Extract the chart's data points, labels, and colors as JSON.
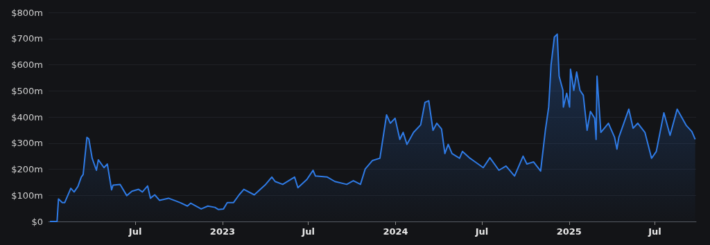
{
  "chart_data": {
    "type": "area",
    "color": "#2f7be6",
    "grid": "y",
    "marker": "none",
    "line_style": "solid",
    "xlim": [
      "2021-12-30",
      "2025-09-26"
    ],
    "xticks": [
      {
        "value": "2022-07-01",
        "label": "Jul"
      },
      {
        "value": "2023-01-01",
        "label": "2023"
      },
      {
        "value": "2023-07-01",
        "label": "Jul"
      },
      {
        "value": "2024-01-01",
        "label": "2024"
      },
      {
        "value": "2024-07-01",
        "label": "Jul"
      },
      {
        "value": "2025-01-01",
        "label": "2025"
      },
      {
        "value": "2025-07-01",
        "label": "Jul"
      }
    ],
    "ylim": [
      0,
      800
    ],
    "yticks": [
      {
        "value": 0,
        "label": "$0"
      },
      {
        "value": 100,
        "label": "$100m"
      },
      {
        "value": 200,
        "label": "$200m"
      },
      {
        "value": 300,
        "label": "$300m"
      },
      {
        "value": 400,
        "label": "$400m"
      },
      {
        "value": 500,
        "label": "$500m"
      },
      {
        "value": 600,
        "label": "$600m"
      },
      {
        "value": 700,
        "label": "$700m"
      },
      {
        "value": 800,
        "label": "$800m"
      }
    ],
    "x": [
      "2022-01-02",
      "2022-01-17",
      "2022-01-20",
      "2022-01-28",
      "2022-02-02",
      "2022-02-15",
      "2022-02-22",
      "2022-03-02",
      "2022-03-09",
      "2022-03-13",
      "2022-03-21",
      "2022-03-25",
      "2022-04-01",
      "2022-04-10",
      "2022-04-14",
      "2022-04-26",
      "2022-05-03",
      "2022-05-12",
      "2022-05-15",
      "2022-05-30",
      "2022-06-13",
      "2022-06-24",
      "2022-07-08",
      "2022-07-16",
      "2022-07-27",
      "2022-08-02",
      "2022-08-11",
      "2022-08-21",
      "2022-09-09",
      "2022-10-04",
      "2022-10-19",
      "2022-10-26",
      "2022-11-17",
      "2022-12-01",
      "2022-12-16",
      "2022-12-23",
      "2023-01-03",
      "2023-01-11",
      "2023-01-24",
      "2023-02-05",
      "2023-02-15",
      "2023-03-09",
      "2023-04-02",
      "2023-04-15",
      "2023-04-22",
      "2023-05-08",
      "2023-06-02",
      "2023-06-09",
      "2023-06-28",
      "2023-07-11",
      "2023-07-16",
      "2023-08-10",
      "2023-08-26",
      "2023-09-20",
      "2023-10-04",
      "2023-10-19",
      "2023-10-29",
      "2023-11-13",
      "2023-11-29",
      "2023-12-13",
      "2023-12-21",
      "2023-12-31",
      "2024-01-10",
      "2024-01-17",
      "2024-01-25",
      "2024-02-08",
      "2024-02-23",
      "2024-03-03",
      "2024-03-11",
      "2024-03-20",
      "2024-03-28",
      "2024-04-07",
      "2024-04-14",
      "2024-04-21",
      "2024-04-29",
      "2024-05-15",
      "2024-05-21",
      "2024-06-06",
      "2024-06-13",
      "2024-07-04",
      "2024-07-18",
      "2024-08-06",
      "2024-08-21",
      "2024-09-08",
      "2024-09-26",
      "2024-10-04",
      "2024-10-18",
      "2024-11-02",
      "2024-11-12",
      "2024-11-19",
      "2024-11-24",
      "2024-12-01",
      "2024-12-07",
      "2024-12-11",
      "2024-12-19",
      "2024-12-20",
      "2024-12-27",
      "2025-01-02",
      "2025-01-04",
      "2025-01-11",
      "2025-01-17",
      "2025-01-24",
      "2025-01-31",
      "2025-02-08",
      "2025-02-15",
      "2025-02-24",
      "2025-02-27",
      "2025-03-01",
      "2025-03-09",
      "2025-03-25",
      "2025-04-07",
      "2025-04-12",
      "2025-04-16",
      "2025-05-07",
      "2025-05-16",
      "2025-05-26",
      "2025-06-10",
      "2025-06-24",
      "2025-07-04",
      "2025-07-20",
      "2025-08-02",
      "2025-08-17",
      "2025-09-05",
      "2025-09-17",
      "2025-09-24"
    ],
    "values": [
      0,
      0,
      86,
      72,
      72,
      127,
      113,
      134,
      170,
      180,
      322,
      316,
      242,
      196,
      236,
      206,
      220,
      121,
      139,
      142,
      99,
      116,
      123,
      113,
      136,
      89,
      102,
      81,
      89,
      72,
      59,
      70,
      48,
      59,
      54,
      46,
      48,
      72,
      72,
      102,
      123,
      102,
      142,
      170,
      153,
      142,
      170,
      129,
      161,
      196,
      174,
      170,
      153,
      142,
      156,
      142,
      201,
      233,
      242,
      408,
      376,
      395,
      314,
      341,
      295,
      341,
      370,
      456,
      462,
      349,
      376,
      354,
      260,
      295,
      260,
      242,
      268,
      242,
      233,
      206,
      244,
      196,
      212,
      174,
      250,
      220,
      228,
      193,
      349,
      438,
      599,
      706,
      717,
      556,
      502,
      438,
      491,
      438,
      583,
      502,
      572,
      502,
      483,
      349,
      421,
      395,
      314,
      556,
      341,
      376,
      322,
      277,
      322,
      430,
      357,
      376,
      341,
      242,
      268,
      416,
      330,
      430,
      368,
      344,
      314
    ]
  }
}
